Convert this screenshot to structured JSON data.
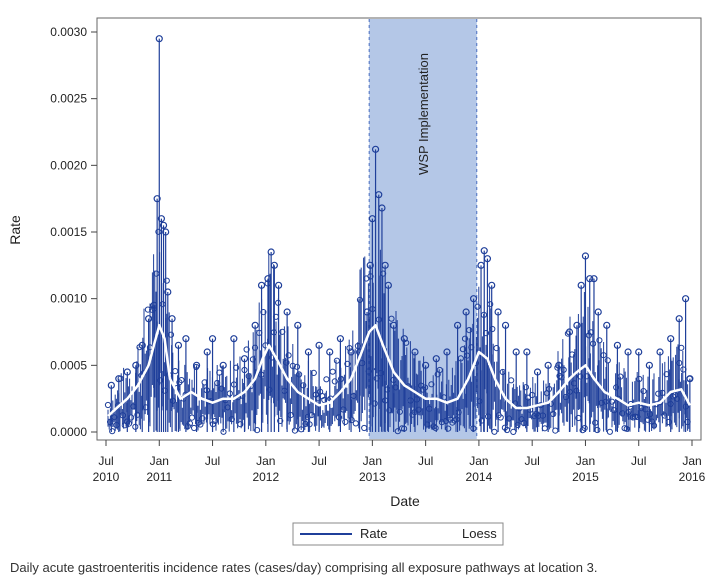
{
  "chart_data": {
    "type": "line",
    "title": "",
    "xlabel": "Date",
    "ylabel": "Rate",
    "ylim": [
      0,
      0.003
    ],
    "xlim": [
      2010.5,
      2016.0
    ],
    "y_ticks": [
      "0.0000",
      "0.0005",
      "0.0010",
      "0.0015",
      "0.0020",
      "0.0025",
      "0.0030"
    ],
    "y_tick_values": [
      0,
      0.0005,
      0.001,
      0.0015,
      0.002,
      0.0025,
      0.003
    ],
    "x_ticks": [
      {
        "t": 2010.5,
        "top": "Jul",
        "bottom": "2010"
      },
      {
        "t": 2011.0,
        "top": "Jan",
        "bottom": "2011"
      },
      {
        "t": 2011.5,
        "top": "Jul",
        "bottom": ""
      },
      {
        "t": 2012.0,
        "top": "Jan",
        "bottom": "2012"
      },
      {
        "t": 2012.5,
        "top": "Jul",
        "bottom": ""
      },
      {
        "t": 2013.0,
        "top": "Jan",
        "bottom": "2013"
      },
      {
        "t": 2013.5,
        "top": "Jul",
        "bottom": ""
      },
      {
        "t": 2014.0,
        "top": "Jan",
        "bottom": "2014"
      },
      {
        "t": 2014.5,
        "top": "Jul",
        "bottom": ""
      },
      {
        "t": 2015.0,
        "top": "Jan",
        "bottom": "2015"
      },
      {
        "t": 2015.5,
        "top": "Jul",
        "bottom": ""
      },
      {
        "t": 2016.0,
        "top": "Jan",
        "bottom": "2016"
      }
    ],
    "shaded_region": {
      "label": "WSP Implementation",
      "start": 2012.97,
      "end": 2013.98,
      "color": "#b4c7e7"
    },
    "series": [
      {
        "name": "Rate",
        "style": "daily values with circle markers and needle lines",
        "color": "#1f3f9a",
        "points": [
          [
            2010.55,
            0.00035
          ],
          [
            2010.62,
            0.0004
          ],
          [
            2010.7,
            0.00045
          ],
          [
            2010.78,
            0.0005
          ],
          [
            2010.84,
            0.00065
          ],
          [
            2010.9,
            0.00085
          ],
          [
            2010.95,
            0.00095
          ],
          [
            2010.98,
            0.00175
          ],
          [
            2011.0,
            0.00295
          ],
          [
            2011.02,
            0.0016
          ],
          [
            2011.04,
            0.00155
          ],
          [
            2011.06,
            0.0015
          ],
          [
            2011.08,
            0.00105
          ],
          [
            2011.12,
            0.00085
          ],
          [
            2011.18,
            0.00065
          ],
          [
            2011.25,
            0.0007
          ],
          [
            2011.35,
            0.0005
          ],
          [
            2011.45,
            0.0006
          ],
          [
            2011.5,
            0.0007
          ],
          [
            2011.6,
            0.0005
          ],
          [
            2011.7,
            0.0007
          ],
          [
            2011.8,
            0.00055
          ],
          [
            2011.9,
            0.0008
          ],
          [
            2011.96,
            0.0011
          ],
          [
            2012.02,
            0.00115
          ],
          [
            2012.05,
            0.00135
          ],
          [
            2012.08,
            0.00125
          ],
          [
            2012.12,
            0.0011
          ],
          [
            2012.2,
            0.0009
          ],
          [
            2012.3,
            0.0008
          ],
          [
            2012.4,
            0.0006
          ],
          [
            2012.5,
            0.00065
          ],
          [
            2012.6,
            0.0006
          ],
          [
            2012.7,
            0.0007
          ],
          [
            2012.8,
            0.0006
          ],
          [
            2012.88,
            0.0006
          ],
          [
            2012.95,
            0.0009
          ],
          [
            2012.98,
            0.00125
          ],
          [
            2013.0,
            0.0016
          ],
          [
            2013.03,
            0.00212
          ],
          [
            2013.06,
            0.00178
          ],
          [
            2013.09,
            0.00168
          ],
          [
            2013.12,
            0.00125
          ],
          [
            2013.15,
            0.0011
          ],
          [
            2013.2,
            0.0008
          ],
          [
            2013.3,
            0.0007
          ],
          [
            2013.4,
            0.0006
          ],
          [
            2013.5,
            0.0005
          ],
          [
            2013.6,
            0.00055
          ],
          [
            2013.7,
            0.0006
          ],
          [
            2013.8,
            0.0008
          ],
          [
            2013.88,
            0.0009
          ],
          [
            2013.95,
            0.001
          ],
          [
            2014.02,
            0.00125
          ],
          [
            2014.05,
            0.00136
          ],
          [
            2014.08,
            0.0013
          ],
          [
            2014.12,
            0.0011
          ],
          [
            2014.18,
            0.0009
          ],
          [
            2014.25,
            0.0008
          ],
          [
            2014.35,
            0.0006
          ],
          [
            2014.45,
            0.0006
          ],
          [
            2014.55,
            0.00045
          ],
          [
            2014.65,
            0.0005
          ],
          [
            2014.75,
            0.0005
          ],
          [
            2014.85,
            0.00075
          ],
          [
            2014.92,
            0.0008
          ],
          [
            2014.96,
            0.0011
          ],
          [
            2015.0,
            0.00132
          ],
          [
            2015.04,
            0.00115
          ],
          [
            2015.08,
            0.00115
          ],
          [
            2015.12,
            0.0009
          ],
          [
            2015.2,
            0.0008
          ],
          [
            2015.3,
            0.00065
          ],
          [
            2015.4,
            0.0006
          ],
          [
            2015.5,
            0.0006
          ],
          [
            2015.6,
            0.0005
          ],
          [
            2015.7,
            0.0006
          ],
          [
            2015.8,
            0.0007
          ],
          [
            2015.88,
            0.00085
          ],
          [
            2015.94,
            0.001
          ],
          [
            2015.98,
            0.0004
          ]
        ]
      },
      {
        "name": "Loess",
        "style": "smoothed white line",
        "color": "#ffffff",
        "points": [
          [
            2010.52,
            0.00012
          ],
          [
            2010.6,
            0.00018
          ],
          [
            2010.7,
            0.00025
          ],
          [
            2010.8,
            0.00035
          ],
          [
            2010.9,
            0.0005
          ],
          [
            2010.95,
            0.00065
          ],
          [
            2011.0,
            0.0008
          ],
          [
            2011.05,
            0.0007
          ],
          [
            2011.1,
            0.0004
          ],
          [
            2011.2,
            0.00025
          ],
          [
            2011.3,
            0.0003
          ],
          [
            2011.4,
            0.00025
          ],
          [
            2011.5,
            0.00022
          ],
          [
            2011.6,
            0.00025
          ],
          [
            2011.7,
            0.00025
          ],
          [
            2011.8,
            0.0003
          ],
          [
            2011.9,
            0.0004
          ],
          [
            2011.97,
            0.00055
          ],
          [
            2012.03,
            0.00065
          ],
          [
            2012.1,
            0.00055
          ],
          [
            2012.2,
            0.0004
          ],
          [
            2012.3,
            0.0003
          ],
          [
            2012.4,
            0.00025
          ],
          [
            2012.5,
            0.0002
          ],
          [
            2012.6,
            0.00022
          ],
          [
            2012.7,
            0.0003
          ],
          [
            2012.8,
            0.0004
          ],
          [
            2012.9,
            0.0006
          ],
          [
            2012.97,
            0.00075
          ],
          [
            2013.03,
            0.0008
          ],
          [
            2013.1,
            0.00065
          ],
          [
            2013.2,
            0.00045
          ],
          [
            2013.3,
            0.00035
          ],
          [
            2013.4,
            0.0003
          ],
          [
            2013.5,
            0.00025
          ],
          [
            2013.6,
            0.00025
          ],
          [
            2013.7,
            0.00022
          ],
          [
            2013.8,
            0.00025
          ],
          [
            2013.9,
            0.0004
          ],
          [
            2014.0,
            0.0006
          ],
          [
            2014.08,
            0.00055
          ],
          [
            2014.15,
            0.0004
          ],
          [
            2014.25,
            0.00025
          ],
          [
            2014.35,
            0.00018
          ],
          [
            2014.45,
            0.00018
          ],
          [
            2014.55,
            0.0002
          ],
          [
            2014.65,
            0.00022
          ],
          [
            2014.75,
            0.0003
          ],
          [
            2014.85,
            0.0004
          ],
          [
            2014.92,
            0.00045
          ],
          [
            2015.0,
            0.0005
          ],
          [
            2015.08,
            0.0004
          ],
          [
            2015.18,
            0.0003
          ],
          [
            2015.3,
            0.00025
          ],
          [
            2015.4,
            0.0002
          ],
          [
            2015.5,
            0.00022
          ],
          [
            2015.6,
            0.0002
          ],
          [
            2015.7,
            0.00022
          ],
          [
            2015.8,
            0.0003
          ],
          [
            2015.9,
            0.00032
          ],
          [
            2015.98,
            0.0002
          ]
        ]
      }
    ],
    "legend": {
      "placement": "bottom-center",
      "entries": [
        "Rate",
        "Loess"
      ]
    }
  },
  "caption": "Daily acute gastroenteritis incidence rates (cases/day) comprising all exposure pathways at location 3."
}
